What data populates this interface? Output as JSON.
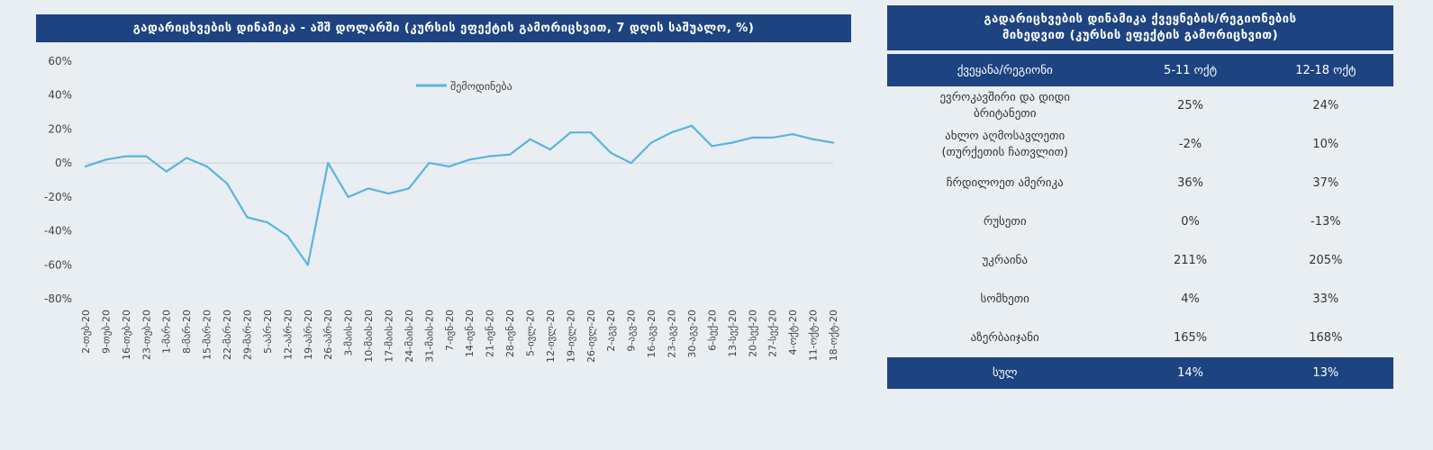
{
  "chart_title": "გადარიცხვების დინამიკა - აშშ დოლარში (კურსის ეფექტის გამორიცხვით, 7 დღის საშუალო, %)",
  "chart_data": {
    "type": "line",
    "title": "გადარიცხვების დინამიკა - აშშ დოლარში (კურსის ეფექტის გამორიცხვით, 7 დღის საშუალო, %)",
    "xlabel": "",
    "ylabel": "",
    "ylim": [
      -80,
      60
    ],
    "y_ticks": [
      "60%",
      "40%",
      "20%",
      "0%",
      "-20%",
      "-40%",
      "-60%",
      "-80%"
    ],
    "y_tick_values": [
      60,
      40,
      20,
      0,
      -20,
      -40,
      -60,
      -80
    ],
    "grid": false,
    "legend_position": "top-center",
    "color": "#5bb4dd",
    "categories": [
      "2-თებ-20",
      "9-თებ-20",
      "16-თებ-20",
      "23-თებ-20",
      "1-მარ-20",
      "8-მარ-20",
      "15-მარ-20",
      "22-მარ-20",
      "29-მარ-20",
      "5-აპრ-20",
      "12-აპრ-20",
      "19-აპრ-20",
      "26-აპრ-20",
      "3-მაის-20",
      "10-მაის-20",
      "17-მაის-20",
      "24-მაის-20",
      "31-მაის-20",
      "7-ივნ-20",
      "14-ივნ-20",
      "21-ივნ-20",
      "28-ივნ-20",
      "5-ივლ-20",
      "12-ივლ-20",
      "19-ივლ-20",
      "26-ივლ-20",
      "2-აგვ-20",
      "9-აგვ-20",
      "16-აგვ-20",
      "23-აგვ-20",
      "30-აგვ-20",
      "6-სექ-20",
      "13-სექ-20",
      "20-სექ-20",
      "27-სექ-20",
      "4-ოქტ-20",
      "11-ოქტ-20",
      "18-ოქტ-20"
    ],
    "series": [
      {
        "name": "შემოდინება",
        "values": [
          -2,
          2,
          4,
          4,
          -5,
          3,
          -2,
          -12,
          -32,
          -35,
          -43,
          -60,
          0,
          -20,
          -15,
          -18,
          -15,
          0,
          -2,
          2,
          4,
          5,
          14,
          8,
          18,
          18,
          6,
          0,
          12,
          18,
          22,
          10,
          12,
          15,
          15,
          17,
          14,
          12
        ]
      }
    ]
  },
  "table": {
    "title_line1": "გადარიცხვების დინამიკა ქვეყნების/რეგიონების",
    "title_line2": "მიხედვით (კურსის ეფექტის გამორიცხვით)",
    "headers": [
      "ქვეყანა/რეგიონი",
      "5-11 ოქტ",
      "12-18 ოქტ"
    ],
    "rows": [
      {
        "label_1": "ევროკავშირი და დიდი",
        "label_2": "ბრიტანეთი",
        "a": "25%",
        "b": "24%"
      },
      {
        "label_1": "ახლო აღმოსავლეთი",
        "label_2": "(თურქეთის ჩათვლით)",
        "a": "-2%",
        "b": "10%"
      },
      {
        "label_1": "ჩრდილოეთ ამერიკა",
        "label_2": "",
        "a": "36%",
        "b": "37%"
      },
      {
        "label_1": "რუსეთი",
        "label_2": "",
        "a": "0%",
        "b": "-13%"
      },
      {
        "label_1": "უკრაინა",
        "label_2": "",
        "a": "211%",
        "b": "205%"
      },
      {
        "label_1": "სომხეთი",
        "label_2": "",
        "a": "4%",
        "b": "33%"
      },
      {
        "label_1": "აზერბაიჯანი",
        "label_2": "",
        "a": "165%",
        "b": "168%"
      }
    ],
    "total": {
      "label": "სულ",
      "a": "14%",
      "b": "13%"
    }
  }
}
